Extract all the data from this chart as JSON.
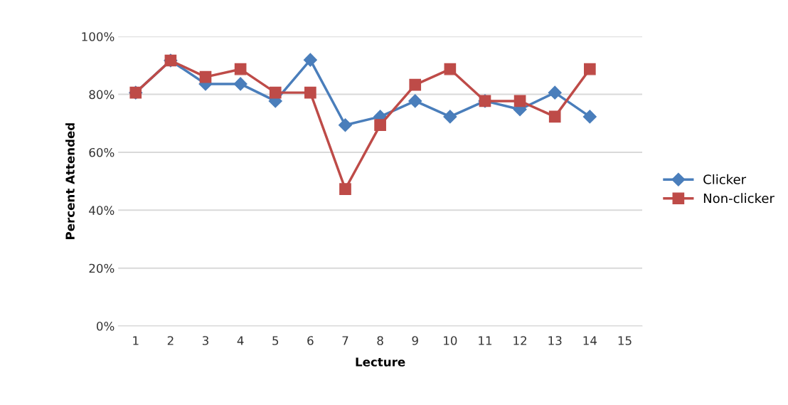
{
  "chart_data": {
    "type": "line",
    "xlabel": "Lecture",
    "ylabel": "Percent Attended",
    "categories": [
      "1",
      "2",
      "3",
      "4",
      "5",
      "6",
      "7",
      "8",
      "9",
      "10",
      "11",
      "12",
      "13",
      "14",
      "15"
    ],
    "series": [
      {
        "name": "Clicker",
        "color": "#4a7ebb",
        "marker": "diamond",
        "values": [
          80.6,
          91.7,
          83.6,
          83.6,
          77.7,
          91.9,
          69.4,
          72.3,
          77.7,
          72.3,
          77.7,
          74.8,
          80.6,
          72.3,
          null
        ]
      },
      {
        "name": "Non-clicker",
        "color": "#be4b48",
        "marker": "square",
        "values": [
          80.6,
          91.7,
          86,
          88.7,
          80.6,
          80.6,
          47.3,
          69.4,
          83.3,
          88.7,
          77.7,
          77.7,
          72.3,
          88.7,
          null
        ]
      }
    ],
    "ylim": [
      0,
      100
    ],
    "yticks": [
      {
        "value": 0,
        "label": "0%"
      },
      {
        "value": 20,
        "label": "20%"
      },
      {
        "value": 40,
        "label": "40%"
      },
      {
        "value": 60,
        "label": "60%"
      },
      {
        "value": 80,
        "label": "80%"
      },
      {
        "value": 100,
        "label": "100%"
      }
    ],
    "grid": "y",
    "legend": "right",
    "line_style": "solid"
  }
}
